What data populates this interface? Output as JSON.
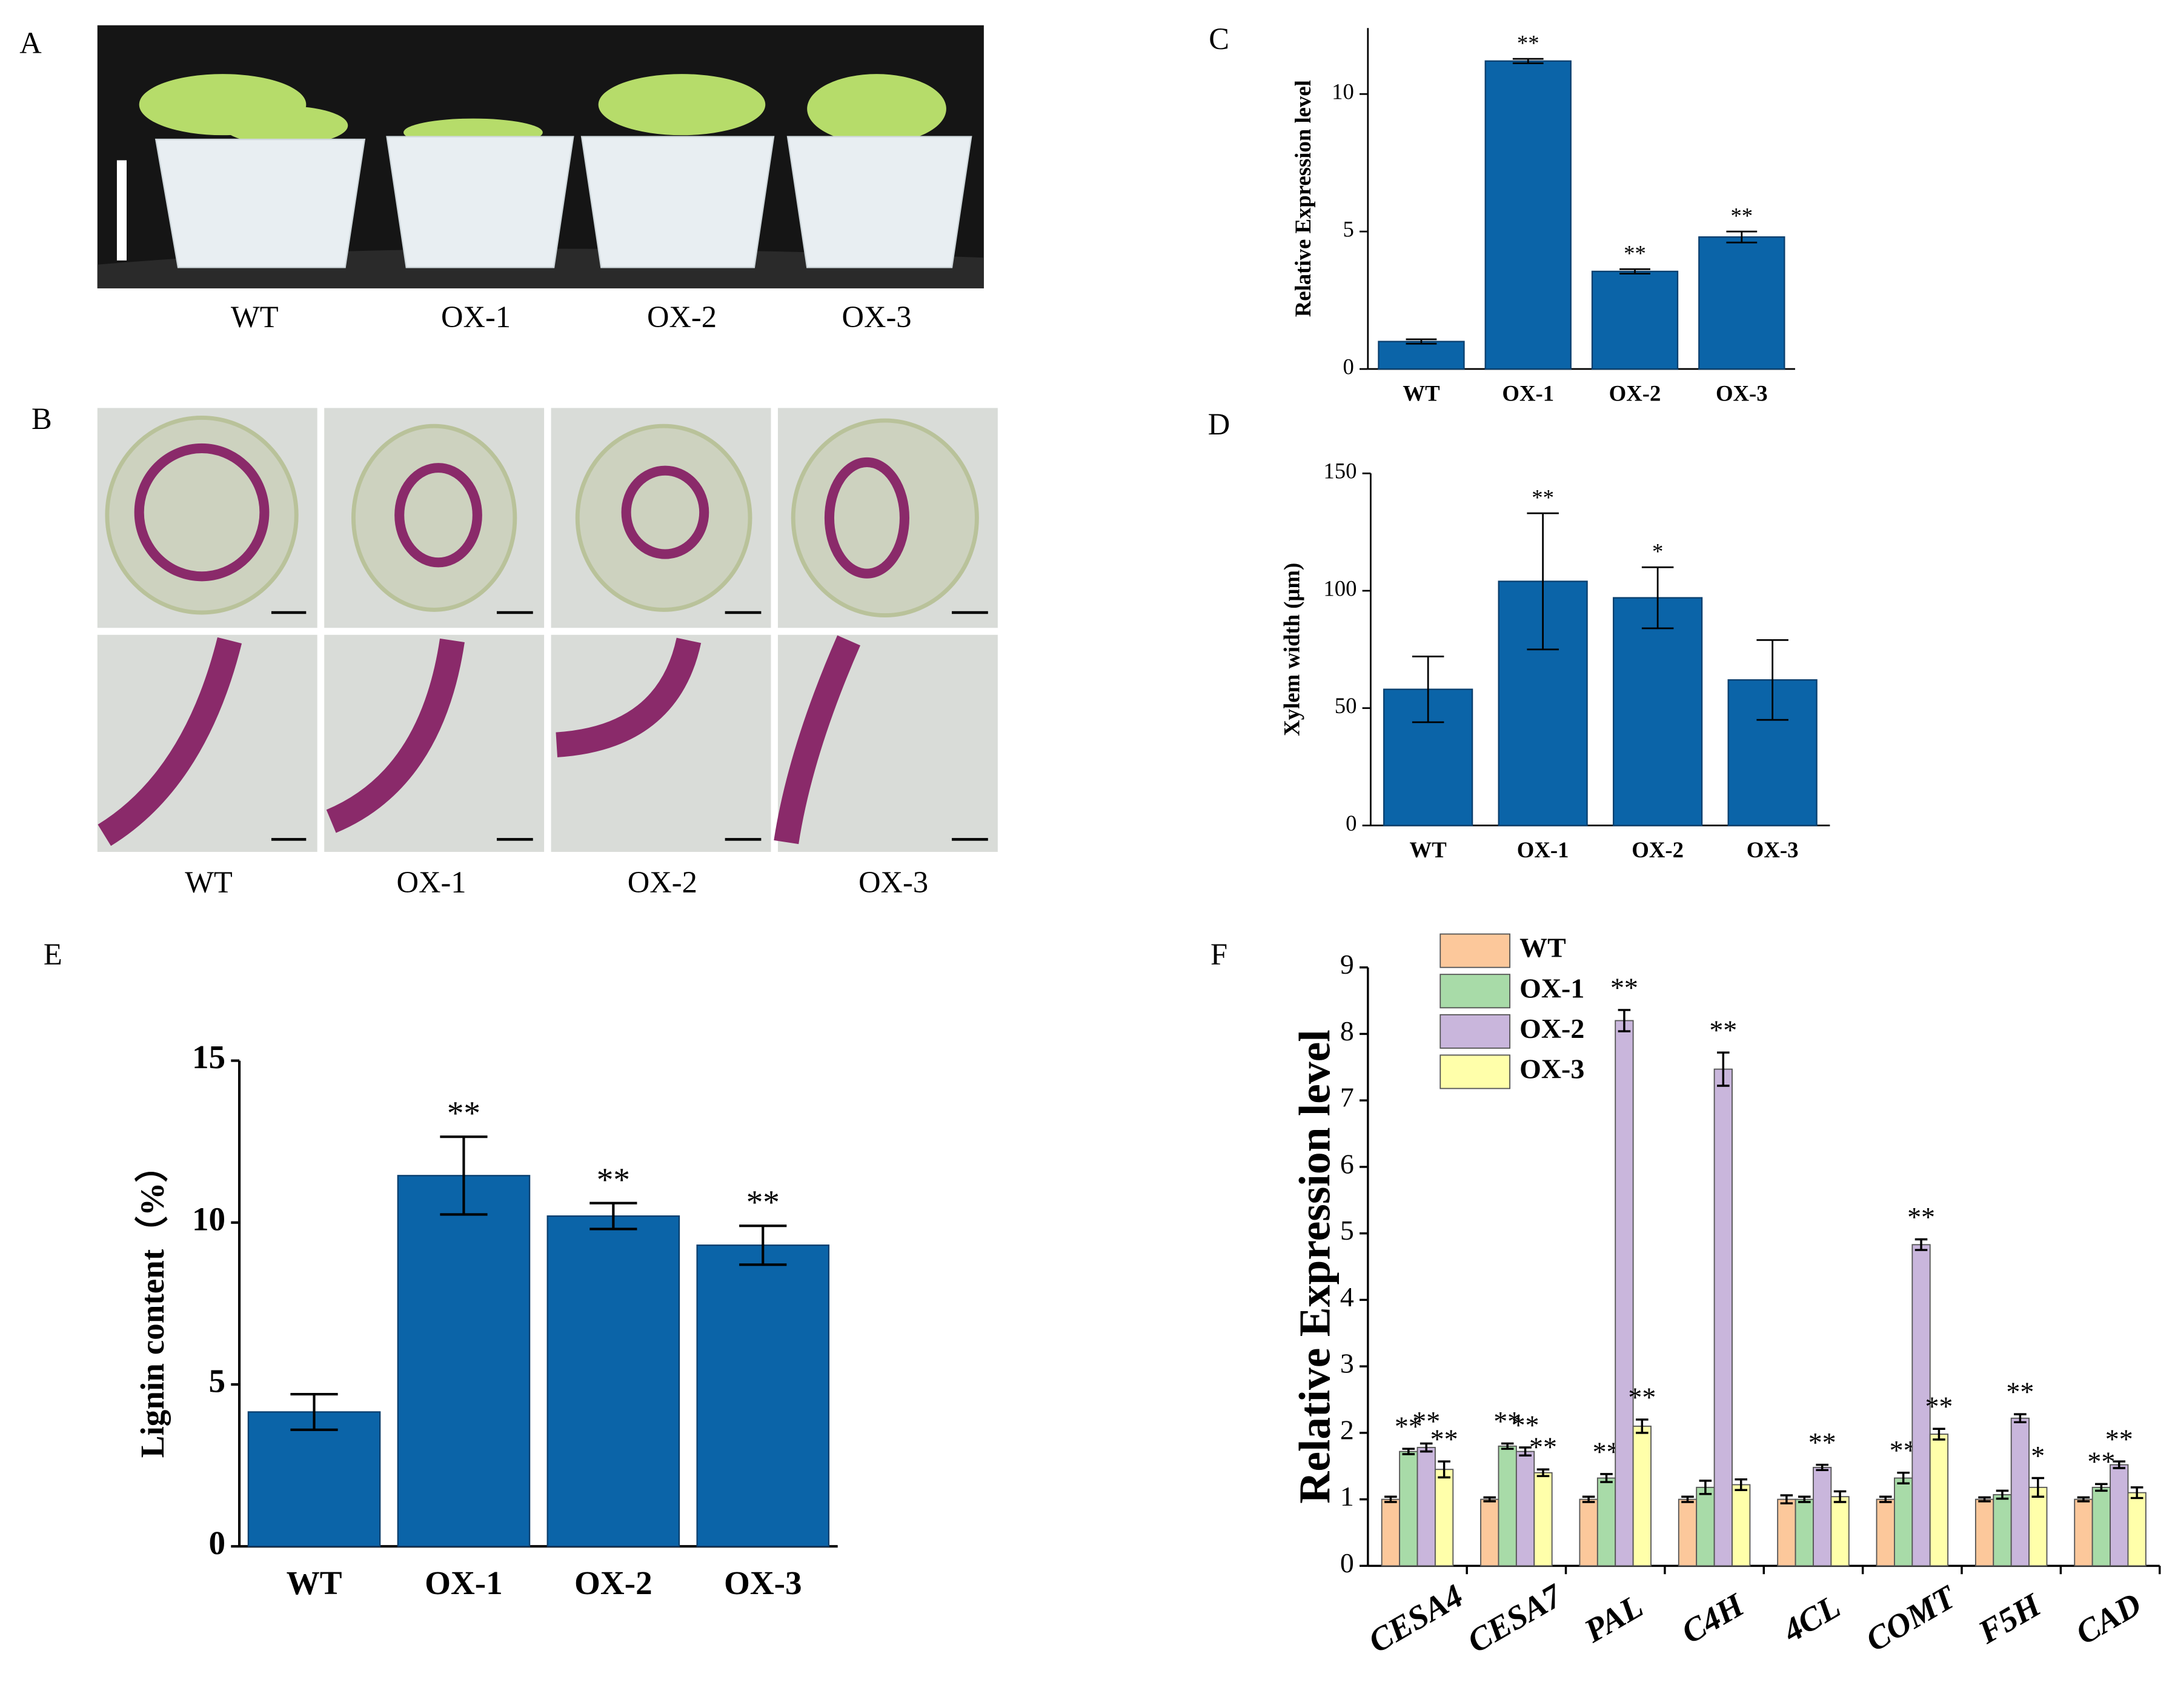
{
  "photos": [
    {
      "panel": "A",
      "labels": [
        "WT",
        "OX-1",
        "OX-2",
        "OX-3"
      ]
    },
    {
      "panel": "B",
      "labels": [
        "WT",
        "OX-1",
        "OX-2",
        "OX-3"
      ]
    }
  ],
  "chart_data": [
    {
      "type": "bar",
      "panel": "C",
      "y_label": "Relative Expression level",
      "categories": [
        "WT",
        "OX-1",
        "OX-2",
        "OX-3"
      ],
      "values": [
        1.0,
        11.2,
        3.55,
        4.8
      ],
      "errors": [
        0.08,
        0.08,
        0.08,
        0.2
      ],
      "annotations": [
        null,
        "**",
        "**",
        "**"
      ],
      "color": "#0b64a8",
      "ylim": [
        0,
        12.4
      ],
      "yticks": [
        0,
        5,
        10
      ]
    },
    {
      "type": "bar",
      "panel": "D",
      "y_label": "Xylem width (μm)",
      "categories": [
        "WT",
        "OX-1",
        "OX-2",
        "OX-3"
      ],
      "values": [
        58,
        104,
        97,
        62
      ],
      "errors": [
        14,
        29,
        13,
        17
      ],
      "annotations": [
        null,
        "**",
        "*",
        null
      ],
      "color": "#0b64a8",
      "ylim": [
        0,
        150
      ],
      "yticks": [
        0,
        50,
        100,
        150
      ]
    },
    {
      "type": "bar",
      "panel": "E",
      "y_label": "Lignin content（%）",
      "categories": [
        "WT",
        "OX-1",
        "OX-2",
        "OX-3"
      ],
      "values": [
        4.15,
        11.45,
        10.2,
        9.3
      ],
      "errors": [
        0.55,
        1.2,
        0.4,
        0.6
      ],
      "annotations": [
        null,
        "**",
        "**",
        "**"
      ],
      "color": "#0b64a8",
      "ylim": [
        0,
        15
      ],
      "yticks": [
        0,
        5,
        10,
        15
      ]
    },
    {
      "type": "grouped_bar",
      "panel": "F",
      "y_label": "Relative Expression level",
      "categories": [
        "CESA4",
        "CESA7",
        "PAL",
        "C4H",
        "4CL",
        "COMT",
        "F5H",
        "CAD"
      ],
      "series": [
        {
          "name": "WT",
          "color": "#fcc89b",
          "values": [
            1,
            1,
            1,
            1,
            1,
            1,
            1,
            1
          ],
          "errors": [
            0.04,
            0.03,
            0.04,
            0.04,
            0.06,
            0.04,
            0.03,
            0.03
          ],
          "annotations": [
            null,
            null,
            null,
            null,
            null,
            null,
            null,
            null
          ]
        },
        {
          "name": "OX-1",
          "color": "#a8dba8",
          "values": [
            1.72,
            1.8,
            1.32,
            1.18,
            1.0,
            1.32,
            1.07,
            1.18
          ],
          "errors": [
            0.04,
            0.04,
            0.06,
            0.1,
            0.04,
            0.08,
            0.06,
            0.05
          ],
          "annotations": [
            "**",
            "**",
            "**",
            null,
            null,
            "**",
            null,
            "**"
          ]
        },
        {
          "name": "OX-2",
          "color": "#c9b6dc",
          "values": [
            1.78,
            1.72,
            8.2,
            7.47,
            1.48,
            4.83,
            2.22,
            1.52
          ],
          "errors": [
            0.06,
            0.06,
            0.16,
            0.25,
            0.04,
            0.08,
            0.06,
            0.05
          ],
          "annotations": [
            "**",
            "**",
            "**",
            "**",
            "**",
            "**",
            "**",
            "**"
          ]
        },
        {
          "name": "OX-3",
          "color": "#ffffaa",
          "values": [
            1.45,
            1.4,
            2.1,
            1.22,
            1.04,
            1.98,
            1.18,
            1.1
          ],
          "errors": [
            0.12,
            0.05,
            0.1,
            0.08,
            0.08,
            0.08,
            0.14,
            0.08
          ],
          "annotations": [
            "**",
            "**",
            "**",
            null,
            null,
            "**",
            "*",
            null
          ]
        }
      ],
      "ylim": [
        0,
        9
      ],
      "yticks": [
        0,
        1,
        2,
        3,
        4,
        5,
        6,
        7,
        8,
        9
      ],
      "legend": "top-left"
    }
  ]
}
